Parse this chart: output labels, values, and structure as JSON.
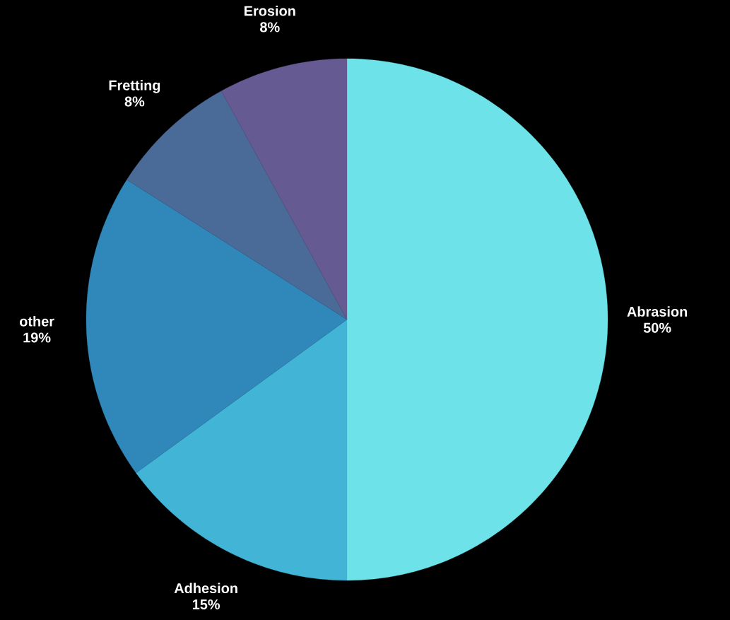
{
  "chart_data": {
    "type": "pie",
    "categories": [
      "Abrasion",
      "Adhesion",
      "other",
      "Fretting",
      "Erosion"
    ],
    "values": [
      50,
      15,
      19,
      8,
      8
    ],
    "value_labels": [
      "50%",
      "15%",
      "19%",
      "8%",
      "8%"
    ],
    "colors": [
      "#6de3e9",
      "#42b5d6",
      "#2f88b9",
      "#4a6a97",
      "#665a93"
    ]
  }
}
